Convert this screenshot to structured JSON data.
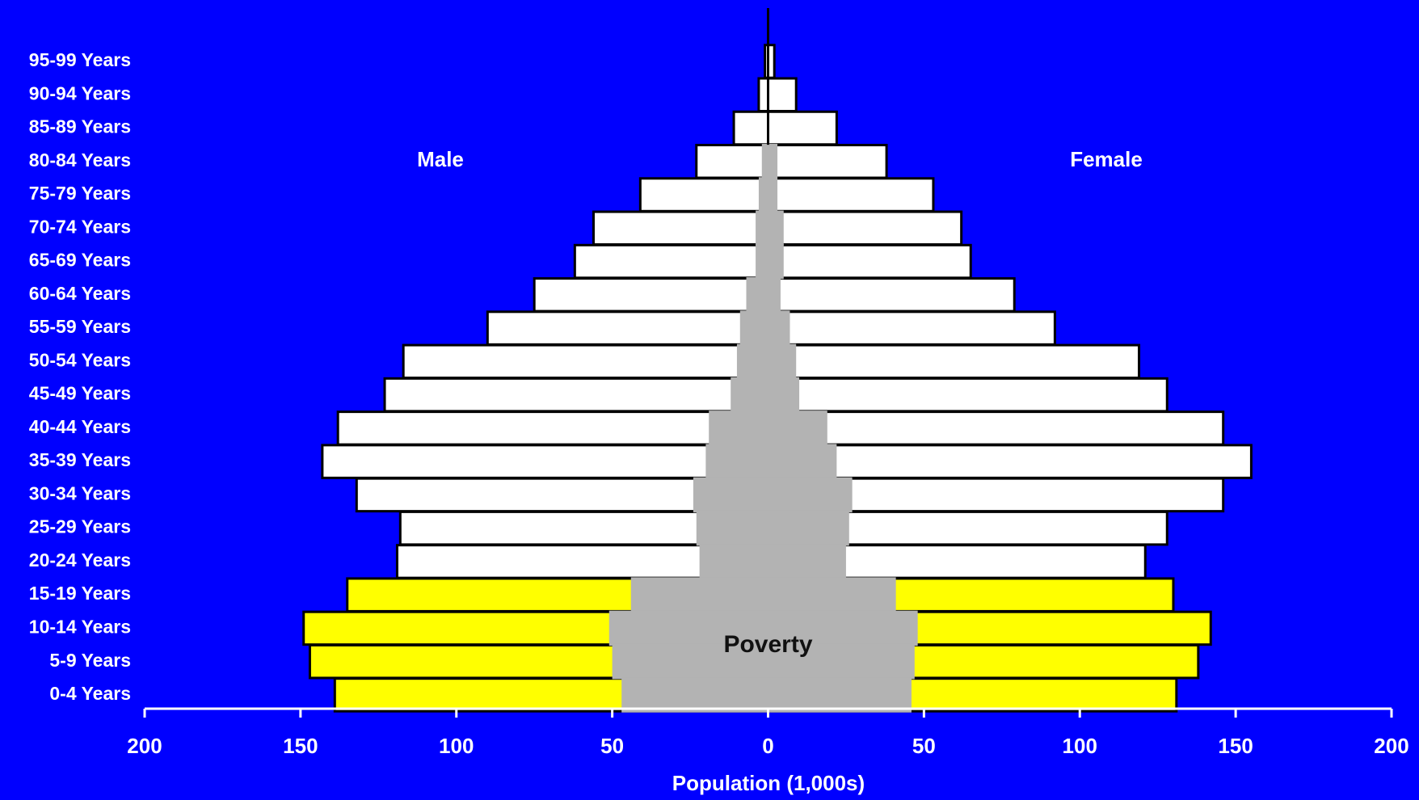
{
  "chart_data": {
    "type": "pyramid",
    "background": "#0000ff",
    "xlabel": "Population (1,000s)",
    "xlim": [
      -200,
      200
    ],
    "xticks": [
      {
        "value": -200,
        "label": "200"
      },
      {
        "value": -150,
        "label": "150"
      },
      {
        "value": -100,
        "label": "100"
      },
      {
        "value": -50,
        "label": "50"
      },
      0,
      50,
      100,
      150,
      200
    ],
    "categories": [
      "95-99 Years",
      "90-94 Years",
      "85-89 Years",
      "80-84 Years",
      "75-79 Years",
      "70-74 Years",
      "65-69 Years",
      "60-64 Years",
      "55-59 Years",
      "50-54 Years",
      "45-49 Years",
      "40-44 Years",
      "35-39 Years",
      "30-34 Years",
      "25-29 Years",
      "20-24 Years",
      "15-19 Years",
      "10-14 Years",
      "5-9 Years",
      "0-4 Years"
    ],
    "series": [
      {
        "name": "Male",
        "side": "left",
        "values": [
          1,
          3,
          11,
          23,
          41,
          56,
          62,
          75,
          90,
          117,
          123,
          138,
          143,
          132,
          118,
          119,
          135,
          149,
          147,
          139
        ],
        "colors": [
          "#ffffff",
          "#ffffff",
          "#ffffff",
          "#ffffff",
          "#ffffff",
          "#ffffff",
          "#ffffff",
          "#ffffff",
          "#ffffff",
          "#ffffff",
          "#ffffff",
          "#ffffff",
          "#ffffff",
          "#ffffff",
          "#ffffff",
          "#ffffff",
          "#ffff00",
          "#ffff00",
          "#ffff00",
          "#ffff00"
        ]
      },
      {
        "name": "Female",
        "side": "right",
        "values": [
          2,
          9,
          22,
          38,
          53,
          62,
          65,
          79,
          92,
          119,
          128,
          146,
          155,
          146,
          128,
          121,
          130,
          142,
          138,
          131
        ],
        "colors": [
          "#ffffff",
          "#ffffff",
          "#ffffff",
          "#ffffff",
          "#ffffff",
          "#ffffff",
          "#ffffff",
          "#ffffff",
          "#ffffff",
          "#ffffff",
          "#ffffff",
          "#ffffff",
          "#ffffff",
          "#ffffff",
          "#ffffff",
          "#ffffff",
          "#ffff00",
          "#ffff00",
          "#ffff00",
          "#ffff00"
        ]
      }
    ],
    "poverty": {
      "label": "Poverty",
      "color": "#b3b3b3",
      "male": [
        0,
        0,
        0,
        2,
        3,
        4,
        4,
        7,
        9,
        10,
        12,
        19,
        20,
        24,
        23,
        22,
        44,
        51,
        50,
        47
      ],
      "female": [
        0,
        0,
        0,
        3,
        3,
        5,
        5,
        4,
        7,
        9,
        10,
        19,
        22,
        27,
        26,
        25,
        41,
        48,
        47,
        46
      ]
    }
  }
}
